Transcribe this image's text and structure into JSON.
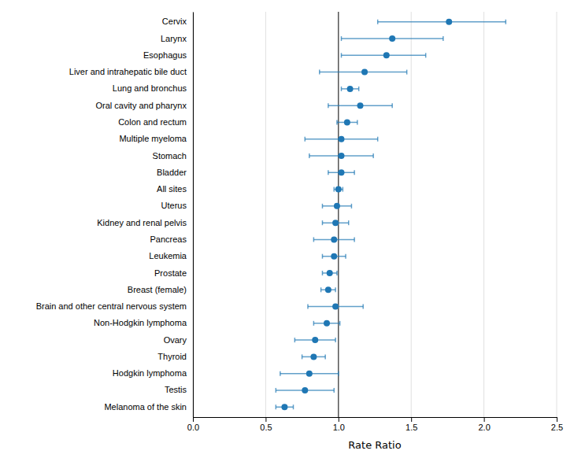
{
  "chart_data": {
    "type": "errorbar",
    "orientation": "horizontal",
    "xlabel": "Rate Ratio",
    "categories": [
      "Cervix",
      "Larynx",
      "Esophagus",
      "Liver and intrahepatic bile duct",
      "Lung and bronchus",
      "Oral cavity and pharynx",
      "Colon and rectum",
      "Multiple myeloma",
      "Stomach",
      "Bladder",
      "All sites",
      "Uterus",
      "Kidney and renal pelvis",
      "Pancreas",
      "Leukemia",
      "Prostate",
      "Breast (female)",
      "Brain and other central nervous system",
      "Non-Hodgkin lymphoma",
      "Ovary",
      "Thyroid",
      "Hodgkin lymphoma",
      "Testis",
      "Melanoma of the skin"
    ],
    "values": [
      1.76,
      1.37,
      1.33,
      1.18,
      1.08,
      1.15,
      1.06,
      1.02,
      1.02,
      1.02,
      1.0,
      0.99,
      0.98,
      0.97,
      0.97,
      0.94,
      0.93,
      0.98,
      0.92,
      0.84,
      0.83,
      0.8,
      0.77,
      0.63
    ],
    "ci_lower": [
      1.27,
      1.02,
      1.02,
      0.87,
      1.02,
      0.93,
      0.99,
      0.77,
      0.8,
      0.93,
      0.97,
      0.89,
      0.89,
      0.83,
      0.89,
      0.89,
      0.88,
      0.79,
      0.83,
      0.7,
      0.75,
      0.6,
      0.57,
      0.57
    ],
    "ci_upper": [
      2.15,
      1.72,
      1.6,
      1.47,
      1.14,
      1.37,
      1.13,
      1.27,
      1.24,
      1.11,
      1.03,
      1.09,
      1.07,
      1.11,
      1.05,
      0.99,
      0.98,
      1.17,
      1.01,
      0.98,
      0.91,
      1.0,
      0.97,
      0.69
    ],
    "reference_line": 1.0,
    "xlim": [
      0.0,
      2.5
    ],
    "xticks": [
      {
        "value": 0.0,
        "label": "0.0"
      },
      0.5,
      {
        "value": 1.0,
        "label": "1.0"
      },
      1.5,
      {
        "value": 2.0,
        "label": "2.0"
      },
      2.5
    ],
    "grid": true
  }
}
